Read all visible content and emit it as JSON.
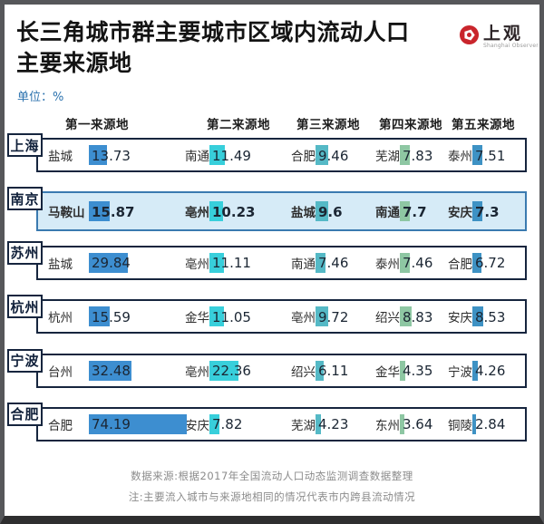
{
  "header": {
    "title_lines": [
      "长三角城市群主要城市区域内流动人口",
      "主要来源地"
    ],
    "unit_label": "单位：%",
    "logo": {
      "name": "上观",
      "subtitle": "Shanghai Observer"
    }
  },
  "chart_data": {
    "type": "bar",
    "title": "长三角城市群主要城市区域内流动人口主要来源地",
    "unit": "%",
    "columns": [
      "第一来源地",
      "第二来源地",
      "第三来源地",
      "第四来源地",
      "第五来源地"
    ],
    "rows": [
      {
        "city": "上海",
        "highlighted": false,
        "sources": [
          {
            "name": "盐城",
            "value": "13.73"
          },
          {
            "name": "南通",
            "value": "11.49"
          },
          {
            "name": "合肥",
            "value": "9.46"
          },
          {
            "name": "芜湖",
            "value": "7.83"
          },
          {
            "name": "泰州",
            "value": "7.51"
          }
        ]
      },
      {
        "city": "南京",
        "highlighted": true,
        "sources": [
          {
            "name": "马鞍山",
            "value": "15.87"
          },
          {
            "name": "亳州",
            "value": "10.23"
          },
          {
            "name": "盐城",
            "value": "9.6"
          },
          {
            "name": "南通",
            "value": "7.7"
          },
          {
            "name": "安庆",
            "value": "7.3"
          }
        ]
      },
      {
        "city": "苏州",
        "highlighted": false,
        "sources": [
          {
            "name": "盐城",
            "value": "29.84"
          },
          {
            "name": "亳州",
            "value": "11.11"
          },
          {
            "name": "南通",
            "value": "7.46"
          },
          {
            "name": "泰州",
            "value": "7.46"
          },
          {
            "name": "合肥",
            "value": "6.72"
          }
        ]
      },
      {
        "city": "杭州",
        "highlighted": false,
        "sources": [
          {
            "name": "杭州",
            "value": "15.59"
          },
          {
            "name": "金华",
            "value": "11.05"
          },
          {
            "name": "亳州",
            "value": "9.72"
          },
          {
            "name": "绍兴",
            "value": "8.83"
          },
          {
            "name": "安庆",
            "value": "8.53"
          }
        ]
      },
      {
        "city": "宁波",
        "highlighted": false,
        "sources": [
          {
            "name": "台州",
            "value": "32.48"
          },
          {
            "name": "亳州",
            "value": "22.36"
          },
          {
            "name": "绍兴",
            "value": "6.11"
          },
          {
            "name": "金华",
            "value": "4.35"
          },
          {
            "name": "宁波",
            "value": "4.26"
          }
        ]
      },
      {
        "city": "合肥",
        "highlighted": false,
        "sources": [
          {
            "name": "合肥",
            "value": "74.19"
          },
          {
            "name": "安庆",
            "value": "7.82"
          },
          {
            "name": "芜湖",
            "value": "4.23"
          },
          {
            "name": "东州",
            "value": "3.64"
          },
          {
            "name": "铜陵",
            "value": "2.84"
          }
        ]
      }
    ],
    "value_axis_note": "bar widths proportional to percentage values"
  },
  "footer": {
    "source": "数据来源:根据2017年全国流动人口动态监测调查数据整理",
    "note": "注:主要流入城市与来源地相同的情况代表市内跨县流动情况"
  },
  "colors": {
    "bar_palette": [
      "#3d8ed0",
      "#38cfdb",
      "#55b9c6",
      "#8ec7a3",
      "#3e92c4"
    ],
    "box_border": "#16253e",
    "highlight_row_bg": "#d6ebf7",
    "highlight_row_border": "#3a7ab0",
    "unit_text": "#2b72ae",
    "footer_text": "#8b8b8b",
    "logo_red": "#c9252c"
  }
}
